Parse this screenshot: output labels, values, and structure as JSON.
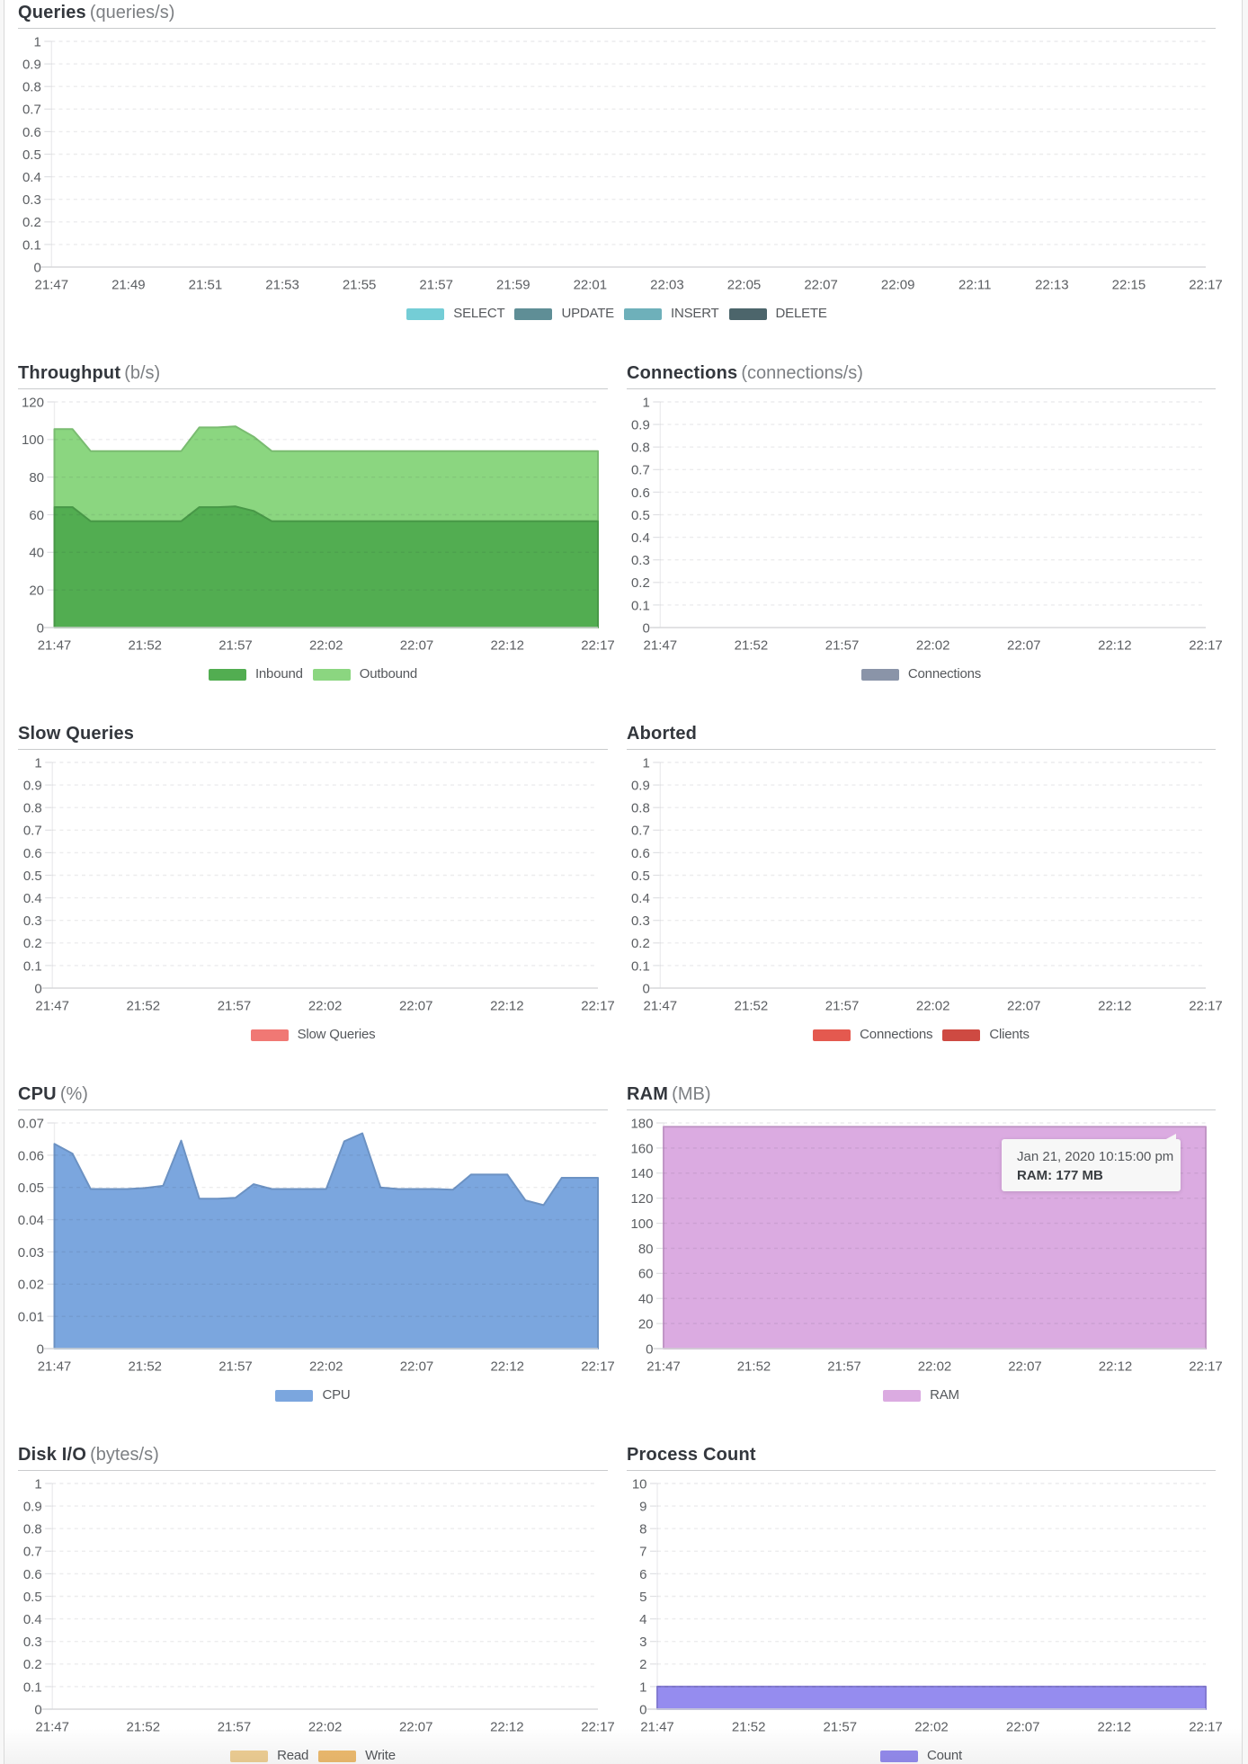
{
  "tooltip": {
    "line1": "Jan 21, 2020 10:15:00 pm",
    "line2": "RAM: 177 MB"
  },
  "chart_data": [
    {
      "id": "queries",
      "type": "area",
      "title": "Queries",
      "subtitle": "(queries/s)",
      "ylim": [
        0,
        1
      ],
      "y_ticks": [
        "1",
        "0.9",
        "0.8",
        "0.7",
        "0.6",
        "0.5",
        "0.4",
        "0.3",
        "0.2",
        "0.1",
        "0"
      ],
      "x_start": "21:47",
      "x_end": "22:17",
      "interval_minutes": 1,
      "x_ticks": [
        "21:47",
        "21:49",
        "21:51",
        "21:53",
        "21:55",
        "21:57",
        "21:59",
        "22:01",
        "22:03",
        "22:05",
        "22:07",
        "22:09",
        "22:11",
        "22:13",
        "22:15",
        "22:17"
      ],
      "grid": "dashed",
      "legend_position": "bottom",
      "series": [
        {
          "name": "SELECT",
          "color": "#74CDD6",
          "values": []
        },
        {
          "name": "UPDATE",
          "color": "#5F8E96",
          "values": []
        },
        {
          "name": "INSERT",
          "color": "#6EB0BA",
          "values": []
        },
        {
          "name": "DELETE",
          "color": "#4C656B",
          "values": []
        }
      ]
    },
    {
      "id": "throughput",
      "type": "area",
      "stacked": true,
      "title": "Throughput",
      "subtitle": "(b/s)",
      "ylim": [
        0,
        120
      ],
      "y_ticks": [
        "120",
        "100",
        "80",
        "60",
        "40",
        "20",
        "0"
      ],
      "x_start": "21:47",
      "x_end": "22:17",
      "interval_minutes": 1,
      "x_ticks": [
        "21:47",
        "21:52",
        "21:57",
        "22:02",
        "22:07",
        "22:12",
        "22:17"
      ],
      "grid": "dashed",
      "legend_position": "bottom",
      "series": [
        {
          "name": "Inbound",
          "color": "#52AD51",
          "values": [
            64,
            64,
            56.5,
            56.5,
            56.5,
            56.5,
            56.5,
            56.5,
            64,
            64,
            64.4,
            62,
            56.5,
            56.5,
            56.5,
            56.5,
            56.5,
            56.5,
            56.5,
            56.5,
            56.5,
            56.5,
            56.5,
            56.5,
            56.5,
            56.5,
            56.5,
            56.5,
            56.5,
            56.5,
            56.5
          ]
        },
        {
          "name": "Outbound",
          "color": "#8BD680",
          "values": [
            41.5,
            41.5,
            37.3,
            37.3,
            37.3,
            37.3,
            37.3,
            37.3,
            42.4,
            42.4,
            42.6,
            39.5,
            37.3,
            37.3,
            37.3,
            37.3,
            37.3,
            37.3,
            37.3,
            37.3,
            37.3,
            37.3,
            37.3,
            37.3,
            37.3,
            37.3,
            37.3,
            37.3,
            37.3,
            37.3,
            37.3
          ]
        }
      ]
    },
    {
      "id": "connections",
      "type": "area",
      "title": "Connections",
      "subtitle": "(connections/s)",
      "ylim": [
        0,
        1
      ],
      "y_ticks": [
        "1",
        "0.9",
        "0.8",
        "0.7",
        "0.6",
        "0.5",
        "0.4",
        "0.3",
        "0.2",
        "0.1",
        "0"
      ],
      "x_start": "21:47",
      "x_end": "22:17",
      "interval_minutes": 1,
      "x_ticks": [
        "21:47",
        "21:52",
        "21:57",
        "22:02",
        "22:07",
        "22:12",
        "22:17"
      ],
      "grid": "dashed",
      "legend_position": "bottom",
      "series": [
        {
          "name": "Connections",
          "color": "#8A94A8",
          "values": []
        }
      ]
    },
    {
      "id": "slow_queries",
      "type": "area",
      "title": "Slow Queries",
      "subtitle": "",
      "ylim": [
        0,
        1
      ],
      "y_ticks": [
        "1",
        "0.9",
        "0.8",
        "0.7",
        "0.6",
        "0.5",
        "0.4",
        "0.3",
        "0.2",
        "0.1",
        "0"
      ],
      "x_start": "21:47",
      "x_end": "22:17",
      "interval_minutes": 1,
      "x_ticks": [
        "21:47",
        "21:52",
        "21:57",
        "22:02",
        "22:07",
        "22:12",
        "22:17"
      ],
      "grid": "dashed",
      "legend_position": "bottom",
      "series": [
        {
          "name": "Slow Queries",
          "color": "#F07874",
          "values": []
        }
      ]
    },
    {
      "id": "aborted",
      "type": "area",
      "title": "Aborted",
      "subtitle": "",
      "ylim": [
        0,
        1
      ],
      "y_ticks": [
        "1",
        "0.9",
        "0.8",
        "0.7",
        "0.6",
        "0.5",
        "0.4",
        "0.3",
        "0.2",
        "0.1",
        "0"
      ],
      "x_start": "21:47",
      "x_end": "22:17",
      "interval_minutes": 1,
      "x_ticks": [
        "21:47",
        "21:52",
        "21:57",
        "22:02",
        "22:07",
        "22:12",
        "22:17"
      ],
      "grid": "dashed",
      "legend_position": "bottom",
      "series": [
        {
          "name": "Connections",
          "color": "#E4594F",
          "values": []
        },
        {
          "name": "Clients",
          "color": "#CE4A42",
          "values": []
        }
      ]
    },
    {
      "id": "cpu",
      "type": "area",
      "title": "CPU",
      "subtitle": "(%)",
      "ylim": [
        0,
        0.07
      ],
      "y_ticks": [
        "0.07",
        "0.06",
        "0.05",
        "0.04",
        "0.03",
        "0.02",
        "0.01",
        "0"
      ],
      "x_start": "21:47",
      "x_end": "22:17",
      "interval_minutes": 1,
      "x_ticks": [
        "21:47",
        "21:52",
        "21:57",
        "22:02",
        "22:07",
        "22:12",
        "22:17"
      ],
      "grid": "dashed",
      "legend_position": "bottom",
      "series": [
        {
          "name": "CPU",
          "color": "#7BA6DE",
          "values": [
            0.0635,
            0.0605,
            0.0495,
            0.0495,
            0.0495,
            0.0498,
            0.0505,
            0.0645,
            0.0465,
            0.0465,
            0.0468,
            0.051,
            0.0495,
            0.0495,
            0.0495,
            0.0495,
            0.0643,
            0.0668,
            0.05,
            0.0495,
            0.0495,
            0.0495,
            0.0493,
            0.054,
            0.054,
            0.054,
            0.046,
            0.0445,
            0.053,
            0.053,
            0.053
          ]
        }
      ]
    },
    {
      "id": "ram",
      "type": "area",
      "title": "RAM",
      "subtitle": "(MB)",
      "ylim": [
        0,
        180
      ],
      "y_ticks": [
        "180",
        "160",
        "140",
        "120",
        "100",
        "80",
        "60",
        "40",
        "20",
        "0"
      ],
      "x_start": "21:47",
      "x_end": "22:17",
      "interval_minutes": 1,
      "x_ticks": [
        "21:47",
        "21:52",
        "21:57",
        "22:02",
        "22:07",
        "22:12",
        "22:17"
      ],
      "grid": "dashed",
      "legend_position": "bottom",
      "series": [
        {
          "name": "RAM",
          "color": "#DBABE1",
          "values": [
            177,
            177,
            177,
            177,
            177,
            177,
            177,
            177,
            177,
            177,
            177,
            177,
            177,
            177,
            177,
            177,
            177,
            177,
            177,
            177,
            177,
            177,
            177,
            177,
            177,
            177,
            177,
            177,
            177,
            177,
            177
          ]
        }
      ]
    },
    {
      "id": "disk_io",
      "type": "area",
      "title": "Disk I/O",
      "subtitle": "(bytes/s)",
      "ylim": [
        0,
        1
      ],
      "y_ticks": [
        "1",
        "0.9",
        "0.8",
        "0.7",
        "0.6",
        "0.5",
        "0.4",
        "0.3",
        "0.2",
        "0.1",
        "0"
      ],
      "x_start": "21:47",
      "x_end": "22:17",
      "interval_minutes": 1,
      "x_ticks": [
        "21:47",
        "21:52",
        "21:57",
        "22:02",
        "22:07",
        "22:12",
        "22:17"
      ],
      "grid": "dashed",
      "legend_position": "bottom",
      "series": [
        {
          "name": "Read",
          "color": "#F0D095",
          "values": []
        },
        {
          "name": "Write",
          "color": "#EFBC6F",
          "values": []
        }
      ]
    },
    {
      "id": "process_count",
      "type": "area",
      "title": "Process Count",
      "subtitle": "",
      "ylim": [
        0,
        10
      ],
      "y_ticks": [
        "10",
        "9",
        "8",
        "7",
        "6",
        "5",
        "4",
        "3",
        "2",
        "1",
        "0"
      ],
      "x_start": "21:47",
      "x_end": "22:17",
      "interval_minutes": 1,
      "x_ticks": [
        "21:47",
        "21:52",
        "21:57",
        "22:02",
        "22:07",
        "22:12",
        "22:17"
      ],
      "grid": "dashed",
      "legend_position": "bottom",
      "series": [
        {
          "name": "Count",
          "color": "#958CEF",
          "values": [
            1,
            1,
            1,
            1,
            1,
            1,
            1,
            1,
            1,
            1,
            1,
            1,
            1,
            1,
            1,
            1,
            1,
            1,
            1,
            1,
            1,
            1,
            1,
            1,
            1,
            1,
            1,
            1,
            1,
            1,
            1
          ]
        }
      ]
    }
  ]
}
